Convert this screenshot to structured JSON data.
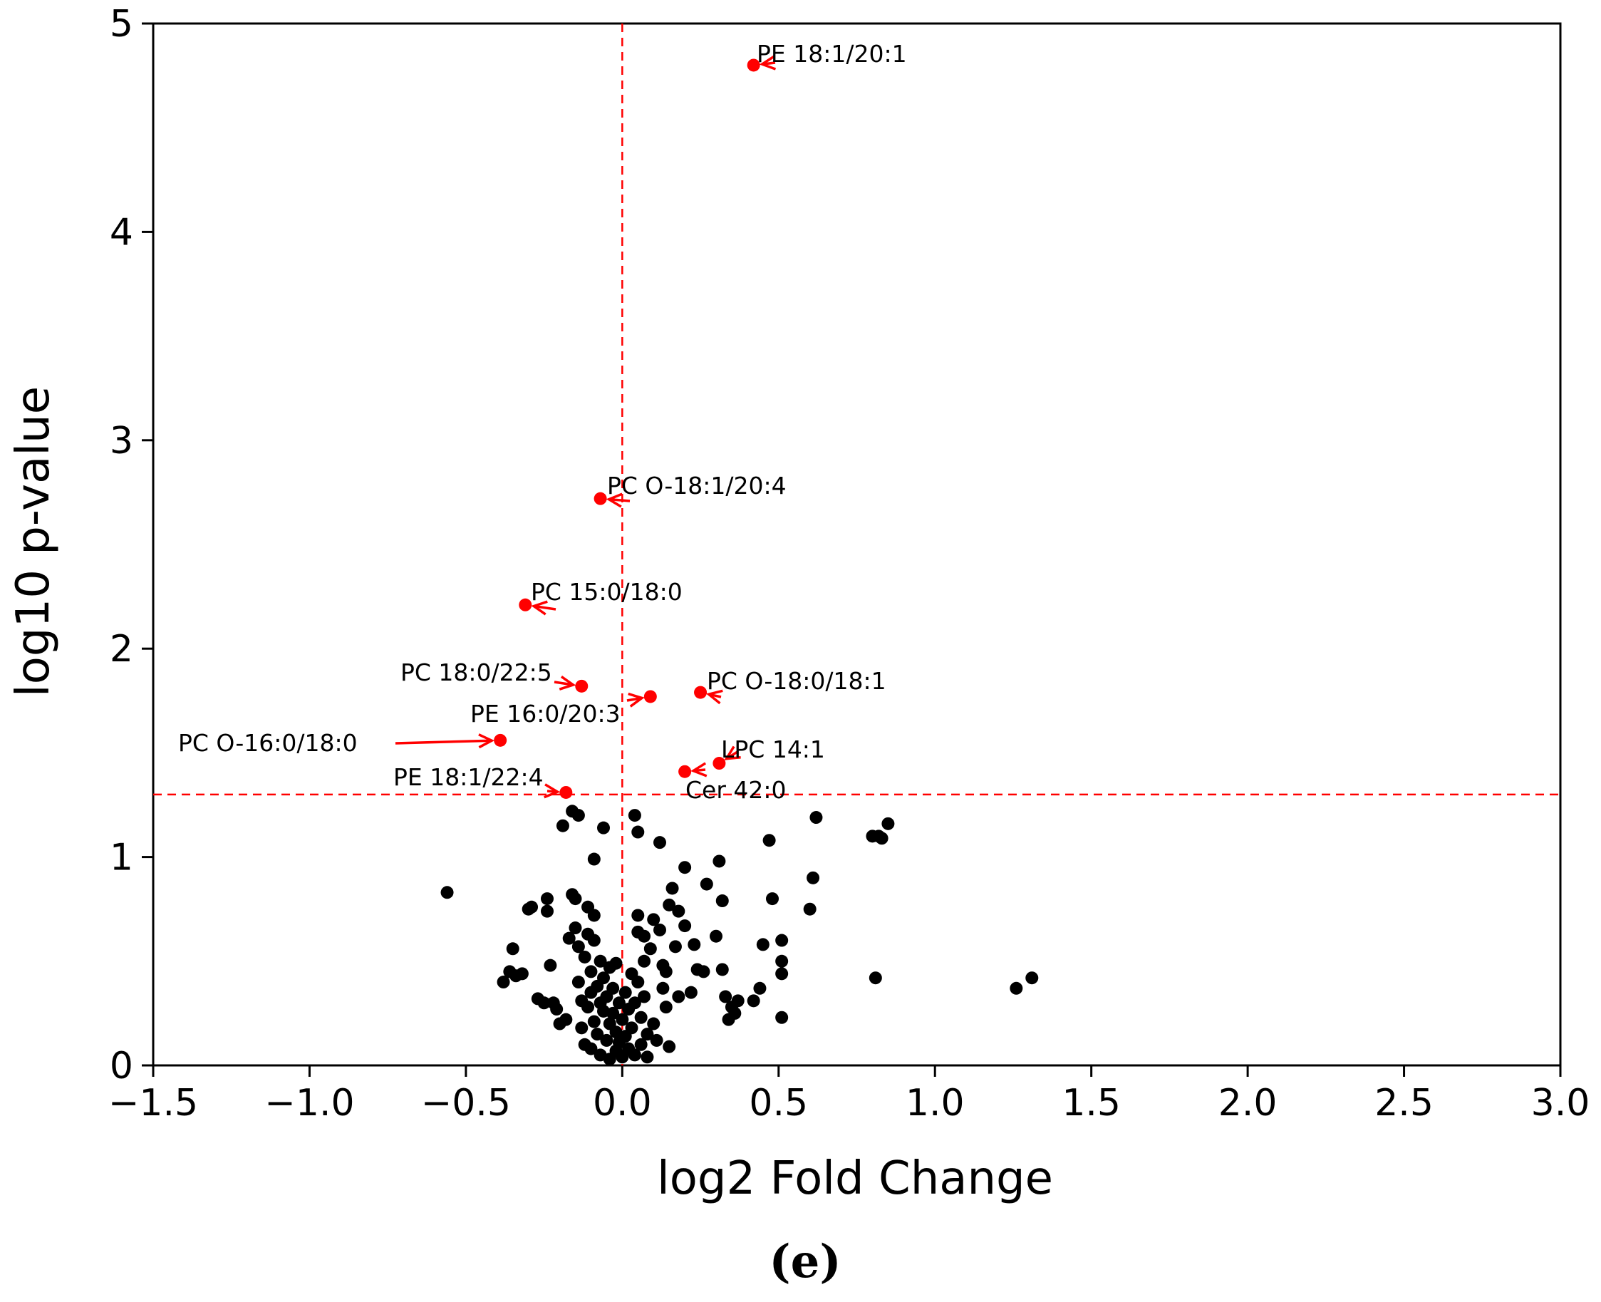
{
  "chart_data": {
    "type": "scatter",
    "xlabel": "log2 Fold Change",
    "ylabel": "log10 p-value",
    "xlim": [
      -1.5,
      3.0
    ],
    "ylim": [
      0,
      5
    ],
    "x_ticks": [
      -1.5,
      -1.0,
      -0.5,
      0.0,
      0.5,
      1.0,
      1.5,
      2.0,
      2.5,
      3.0
    ],
    "x_tick_labels": [
      "−1.5",
      "−1.0",
      "−0.5",
      "0.0",
      "0.5",
      "1.0",
      "1.5",
      "2.0",
      "2.5",
      "3.0"
    ],
    "y_ticks": [
      0,
      1,
      2,
      3,
      4,
      5
    ],
    "y_tick_labels": [
      "0",
      "1",
      "2",
      "3",
      "4",
      "5"
    ],
    "panel_label": "(e)",
    "grid": false,
    "thresholds": {
      "x": 0.0,
      "y": 1.3,
      "color": "#ff0000"
    },
    "colors": {
      "significant": "#ff0000",
      "non_significant": "#000000",
      "annotation_arrow": "#ff0000"
    },
    "significant_points": [
      {
        "label": "PE 18:1/20:1",
        "x": 0.42,
        "y": 4.8
      },
      {
        "label": "PC O-18:1/20:4",
        "x": -0.07,
        "y": 2.72
      },
      {
        "label": "PC 15:0/18:0",
        "x": -0.31,
        "y": 2.21
      },
      {
        "label": "PC 18:0/22:5",
        "x": -0.13,
        "y": 1.82
      },
      {
        "label": "PE 16:0/20:3",
        "x": 0.09,
        "y": 1.77
      },
      {
        "label": "PC O-18:0/18:1",
        "x": 0.25,
        "y": 1.79
      },
      {
        "label": "PC O-16:0/18:0",
        "x": -0.39,
        "y": 1.56
      },
      {
        "label": "LPC 14:1",
        "x": 0.31,
        "y": 1.45
      },
      {
        "label": "Cer 42:0",
        "x": 0.2,
        "y": 1.41
      },
      {
        "label": "PE 18:1/22:4",
        "x": -0.18,
        "y": 1.31
      }
    ],
    "non_significant_points": [
      [
        -0.56,
        0.83
      ],
      [
        -0.38,
        0.4
      ],
      [
        -0.36,
        0.45
      ],
      [
        -0.35,
        0.56
      ],
      [
        -0.34,
        0.43
      ],
      [
        -0.32,
        0.44
      ],
      [
        -0.3,
        0.75
      ],
      [
        -0.29,
        0.76
      ],
      [
        -0.27,
        0.32
      ],
      [
        -0.25,
        0.3
      ],
      [
        -0.24,
        0.8
      ],
      [
        -0.24,
        0.74
      ],
      [
        -0.23,
        0.48
      ],
      [
        -0.22,
        0.3
      ],
      [
        -0.21,
        0.27
      ],
      [
        -0.2,
        0.2
      ],
      [
        -0.19,
        1.15
      ],
      [
        -0.18,
        0.22
      ],
      [
        -0.17,
        0.61
      ],
      [
        -0.16,
        1.22
      ],
      [
        -0.16,
        0.82
      ],
      [
        -0.15,
        0.8
      ],
      [
        -0.15,
        0.66
      ],
      [
        -0.14,
        0.57
      ],
      [
        -0.14,
        1.2
      ],
      [
        -0.14,
        0.4
      ],
      [
        -0.13,
        0.31
      ],
      [
        -0.13,
        0.18
      ],
      [
        -0.12,
        0.52
      ],
      [
        -0.12,
        0.1
      ],
      [
        -0.11,
        0.76
      ],
      [
        -0.11,
        0.63
      ],
      [
        -0.11,
        0.28
      ],
      [
        -0.1,
        0.45
      ],
      [
        -0.1,
        0.35
      ],
      [
        -0.1,
        0.08
      ],
      [
        -0.09,
        0.99
      ],
      [
        -0.09,
        0.72
      ],
      [
        -0.09,
        0.6
      ],
      [
        -0.09,
        0.21
      ],
      [
        -0.08,
        0.38
      ],
      [
        -0.08,
        0.15
      ],
      [
        -0.07,
        0.5
      ],
      [
        -0.07,
        0.3
      ],
      [
        -0.07,
        0.05
      ],
      [
        -0.06,
        1.14
      ],
      [
        -0.06,
        0.42
      ],
      [
        -0.06,
        0.26
      ],
      [
        -0.05,
        0.33
      ],
      [
        -0.05,
        0.12
      ],
      [
        -0.04,
        0.47
      ],
      [
        -0.04,
        0.2
      ],
      [
        -0.04,
        0.03
      ],
      [
        -0.03,
        0.37
      ],
      [
        -0.03,
        0.25
      ],
      [
        -0.02,
        0.49
      ],
      [
        -0.02,
        0.16
      ],
      [
        -0.02,
        0.07
      ],
      [
        -0.01,
        0.3
      ],
      [
        -0.01,
        0.11
      ],
      [
        0.0,
        0.22
      ],
      [
        0.0,
        0.04
      ],
      [
        0.01,
        0.35
      ],
      [
        0.01,
        0.14
      ],
      [
        0.02,
        0.27
      ],
      [
        0.02,
        0.08
      ],
      [
        0.03,
        0.44
      ],
      [
        0.03,
        0.18
      ],
      [
        0.04,
        1.2
      ],
      [
        0.04,
        0.3
      ],
      [
        0.04,
        0.05
      ],
      [
        0.05,
        1.12
      ],
      [
        0.05,
        0.72
      ],
      [
        0.05,
        0.64
      ],
      [
        0.05,
        0.4
      ],
      [
        0.06,
        0.23
      ],
      [
        0.06,
        0.1
      ],
      [
        0.07,
        0.62
      ],
      [
        0.07,
        0.5
      ],
      [
        0.07,
        0.33
      ],
      [
        0.08,
        0.15
      ],
      [
        0.08,
        0.04
      ],
      [
        0.09,
        0.56
      ],
      [
        0.1,
        0.7
      ],
      [
        0.1,
        0.2
      ],
      [
        0.11,
        0.12
      ],
      [
        0.12,
        1.07
      ],
      [
        0.12,
        0.65
      ],
      [
        0.13,
        0.48
      ],
      [
        0.13,
        0.37
      ],
      [
        0.14,
        0.28
      ],
      [
        0.14,
        0.45
      ],
      [
        0.15,
        0.77
      ],
      [
        0.15,
        0.09
      ],
      [
        0.16,
        0.85
      ],
      [
        0.17,
        0.57
      ],
      [
        0.18,
        0.74
      ],
      [
        0.18,
        0.33
      ],
      [
        0.2,
        0.95
      ],
      [
        0.2,
        0.67
      ],
      [
        0.22,
        0.35
      ],
      [
        0.23,
        0.58
      ],
      [
        0.24,
        0.46
      ],
      [
        0.26,
        0.45
      ],
      [
        0.27,
        0.87
      ],
      [
        0.3,
        0.62
      ],
      [
        0.31,
        0.98
      ],
      [
        0.32,
        0.79
      ],
      [
        0.32,
        0.46
      ],
      [
        0.33,
        0.33
      ],
      [
        0.34,
        0.22
      ],
      [
        0.35,
        0.28
      ],
      [
        0.36,
        0.25
      ],
      [
        0.37,
        0.31
      ],
      [
        0.42,
        0.31
      ],
      [
        0.44,
        0.37
      ],
      [
        0.45,
        0.58
      ],
      [
        0.47,
        1.08
      ],
      [
        0.48,
        0.8
      ],
      [
        0.51,
        0.6
      ],
      [
        0.51,
        0.5
      ],
      [
        0.51,
        0.44
      ],
      [
        0.51,
        0.23
      ],
      [
        0.6,
        0.75
      ],
      [
        0.61,
        0.9
      ],
      [
        0.62,
        1.19
      ],
      [
        0.8,
        1.1
      ],
      [
        0.81,
        0.42
      ],
      [
        0.82,
        1.1
      ],
      [
        0.83,
        1.09
      ],
      [
        0.85,
        1.16
      ],
      [
        1.26,
        0.37
      ],
      [
        1.31,
        0.42
      ]
    ]
  }
}
